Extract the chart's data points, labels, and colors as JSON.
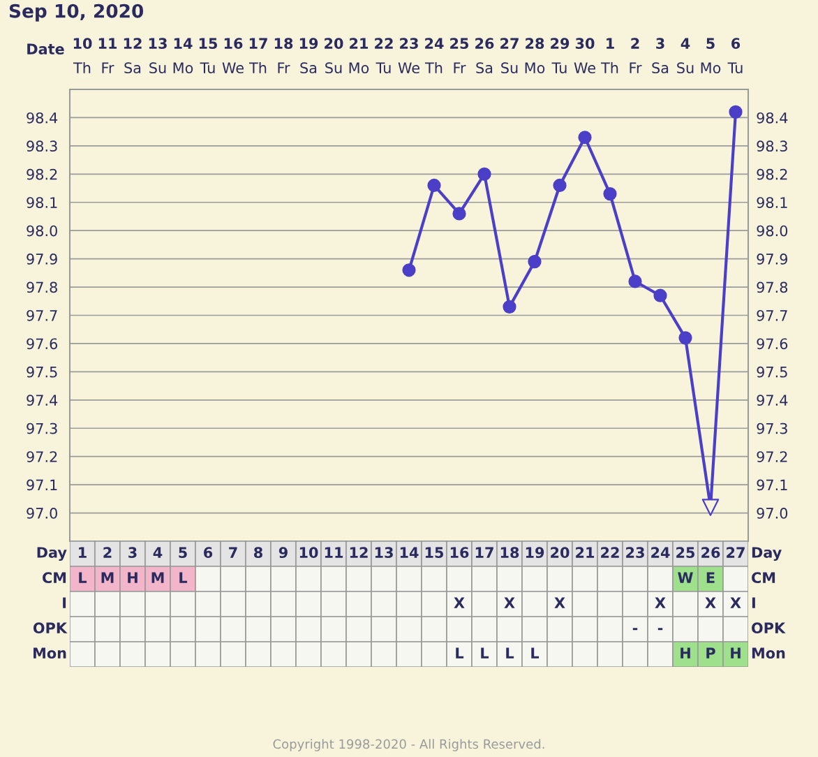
{
  "chart_data": [
    {
      "type": "line",
      "title": "Sep 10, 2020",
      "xlabel": "Date",
      "categories": [
        "10\nTh",
        "11\nFr",
        "12\nSa",
        "13\nSu",
        "14\nMo",
        "15\nTu",
        "16\nWe",
        "17\nTh",
        "18\nFr",
        "19\nSa",
        "20\nSu",
        "21\nMo",
        "22\nTu",
        "23\nWe",
        "24\nTh",
        "25\nFr",
        "26\nSa",
        "27\nSu",
        "28\nMo",
        "29\nTu",
        "30\nWe",
        "1\nTh",
        "2\nFr",
        "3\nSa",
        "4\nSu",
        "5\nMo",
        "6\nTu"
      ],
      "series": [
        {
          "type": "line",
          "marker": "none",
          "line_style": "solid",
          "color": "#4b3fc8",
          "values": [
            null,
            null,
            null,
            null,
            null,
            null,
            null,
            null,
            null,
            null,
            null,
            null,
            null,
            97.86,
            98.16,
            98.06,
            98.2,
            97.73,
            97.89,
            98.16,
            98.33,
            98.13,
            97.82,
            97.77,
            97.62,
            97.02,
            98.42
          ]
        },
        {
          "type": "scatter",
          "marker": "circle",
          "color": "#4b3fc8",
          "values": [
            null,
            null,
            null,
            null,
            null,
            null,
            null,
            null,
            null,
            null,
            null,
            null,
            null,
            97.86,
            98.16,
            98.06,
            98.2,
            97.73,
            97.89,
            98.16,
            98.33,
            98.13,
            97.82,
            97.77,
            97.62,
            null,
            98.42
          ]
        },
        {
          "type": "scatter",
          "marker": "triangle",
          "color": "#4b3fc8",
          "values": [
            null,
            null,
            null,
            null,
            null,
            null,
            null,
            null,
            null,
            null,
            null,
            null,
            null,
            null,
            null,
            null,
            null,
            null,
            null,
            null,
            null,
            null,
            null,
            null,
            null,
            97.02,
            null
          ]
        }
      ],
      "ylim": [
        96.9,
        98.5
      ],
      "yticks": [
        {
          "value": 97,
          "label": "97.0"
        },
        97.1,
        97.2,
        97.3,
        97.4,
        97.5,
        97.6,
        97.7,
        97.8,
        97.9,
        {
          "value": 98,
          "label": "98.0"
        },
        98.1,
        98.2,
        98.3,
        98.4
      ],
      "y2lim": [
        96.9,
        98.5
      ],
      "y2ticks": [
        {
          "value": 97,
          "label": "97.0"
        },
        97.1,
        97.2,
        97.3,
        97.4,
        97.5,
        97.6,
        97.7,
        97.8,
        97.9,
        {
          "value": 98,
          "label": "98.0"
        },
        98.1,
        98.2,
        98.3,
        98.4
      ],
      "grid": true,
      "legend": false,
      "annotations": [
        "Copyright 1998-2020 - All Rights Reserved."
      ]
    },
    {
      "type": "heatmap",
      "xlabel": "Day",
      "categories": [
        "1",
        "2",
        "3",
        "4",
        "5",
        "6",
        "7",
        "8",
        "9",
        "10",
        "11",
        "12",
        "13",
        "14",
        "15",
        "16",
        "17",
        "18",
        "19",
        "20",
        "21",
        "22",
        "23",
        "24",
        "25",
        "26",
        "27"
      ],
      "y_categories": [
        "CM",
        "I",
        "OPK",
        "Mon"
      ],
      "y2_categories": [
        "CM",
        "I",
        "OPK",
        "Mon"
      ],
      "cells": [
        [
          null,
          null,
          null,
          null,
          null,
          null,
          null,
          null,
          null,
          null,
          null,
          null,
          null,
          null,
          null,
          null,
          null,
          null,
          null,
          null,
          null,
          null,
          null,
          null,
          null,
          null,
          null
        ],
        [
          null,
          null,
          null,
          null,
          null,
          null,
          null,
          null,
          null,
          null,
          null,
          null,
          null,
          null,
          null,
          null,
          null,
          null,
          null,
          null,
          null,
          null,
          null,
          null,
          null,
          null,
          null
        ],
        [
          null,
          null,
          null,
          null,
          null,
          null,
          null,
          null,
          null,
          null,
          null,
          null,
          null,
          null,
          null,
          null,
          null,
          null,
          null,
          null,
          null,
          null,
          null,
          null,
          null,
          null,
          null
        ],
        [
          null,
          null,
          null,
          null,
          null,
          null,
          null,
          null,
          null,
          null,
          null,
          null,
          null,
          null,
          null,
          null,
          null,
          null,
          null,
          null,
          null,
          null,
          null,
          null,
          null,
          null,
          null
        ]
      ],
      "cell_labels": [
        [
          "L",
          "M",
          "H",
          "M",
          "L",
          null,
          null,
          null,
          null,
          null,
          null,
          null,
          null,
          null,
          null,
          null,
          null,
          null,
          null,
          null,
          null,
          null,
          null,
          null,
          "W",
          "E",
          null
        ],
        [
          null,
          null,
          null,
          null,
          null,
          null,
          null,
          null,
          null,
          null,
          null,
          null,
          null,
          null,
          null,
          "X",
          null,
          "X",
          null,
          "X",
          null,
          null,
          null,
          "X",
          null,
          "X",
          "X"
        ],
        [
          null,
          null,
          null,
          null,
          null,
          null,
          null,
          null,
          null,
          null,
          null,
          null,
          null,
          null,
          null,
          null,
          null,
          null,
          null,
          null,
          null,
          null,
          "-",
          "-",
          null,
          null,
          null
        ],
        [
          null,
          null,
          null,
          null,
          null,
          null,
          null,
          null,
          null,
          null,
          null,
          null,
          null,
          null,
          null,
          "L",
          "L",
          "L",
          "L",
          null,
          null,
          null,
          null,
          null,
          "H",
          "P",
          "H"
        ]
      ],
      "colors": [
        [
          "#f2b5c9",
          "#f2b5c9",
          "#f2b5c9",
          "#f2b5c9",
          "#f2b5c9",
          null,
          null,
          null,
          null,
          null,
          null,
          null,
          null,
          null,
          null,
          null,
          null,
          null,
          null,
          null,
          null,
          null,
          null,
          null,
          "#9fe08c",
          "#9fe08c",
          null
        ],
        [
          null,
          null,
          null,
          null,
          null,
          null,
          null,
          null,
          null,
          null,
          null,
          null,
          null,
          null,
          null,
          null,
          null,
          null,
          null,
          null,
          null,
          null,
          null,
          null,
          null,
          null,
          null
        ],
        [
          null,
          null,
          null,
          null,
          null,
          null,
          null,
          null,
          null,
          null,
          null,
          null,
          null,
          null,
          null,
          null,
          null,
          null,
          null,
          null,
          null,
          null,
          null,
          null,
          null,
          null,
          null
        ],
        [
          null,
          null,
          null,
          null,
          null,
          null,
          null,
          null,
          null,
          null,
          null,
          null,
          null,
          null,
          null,
          null,
          null,
          null,
          null,
          null,
          null,
          null,
          null,
          null,
          "#9fe08c",
          "#9fe08c",
          "#9fe08c"
        ]
      ]
    }
  ]
}
